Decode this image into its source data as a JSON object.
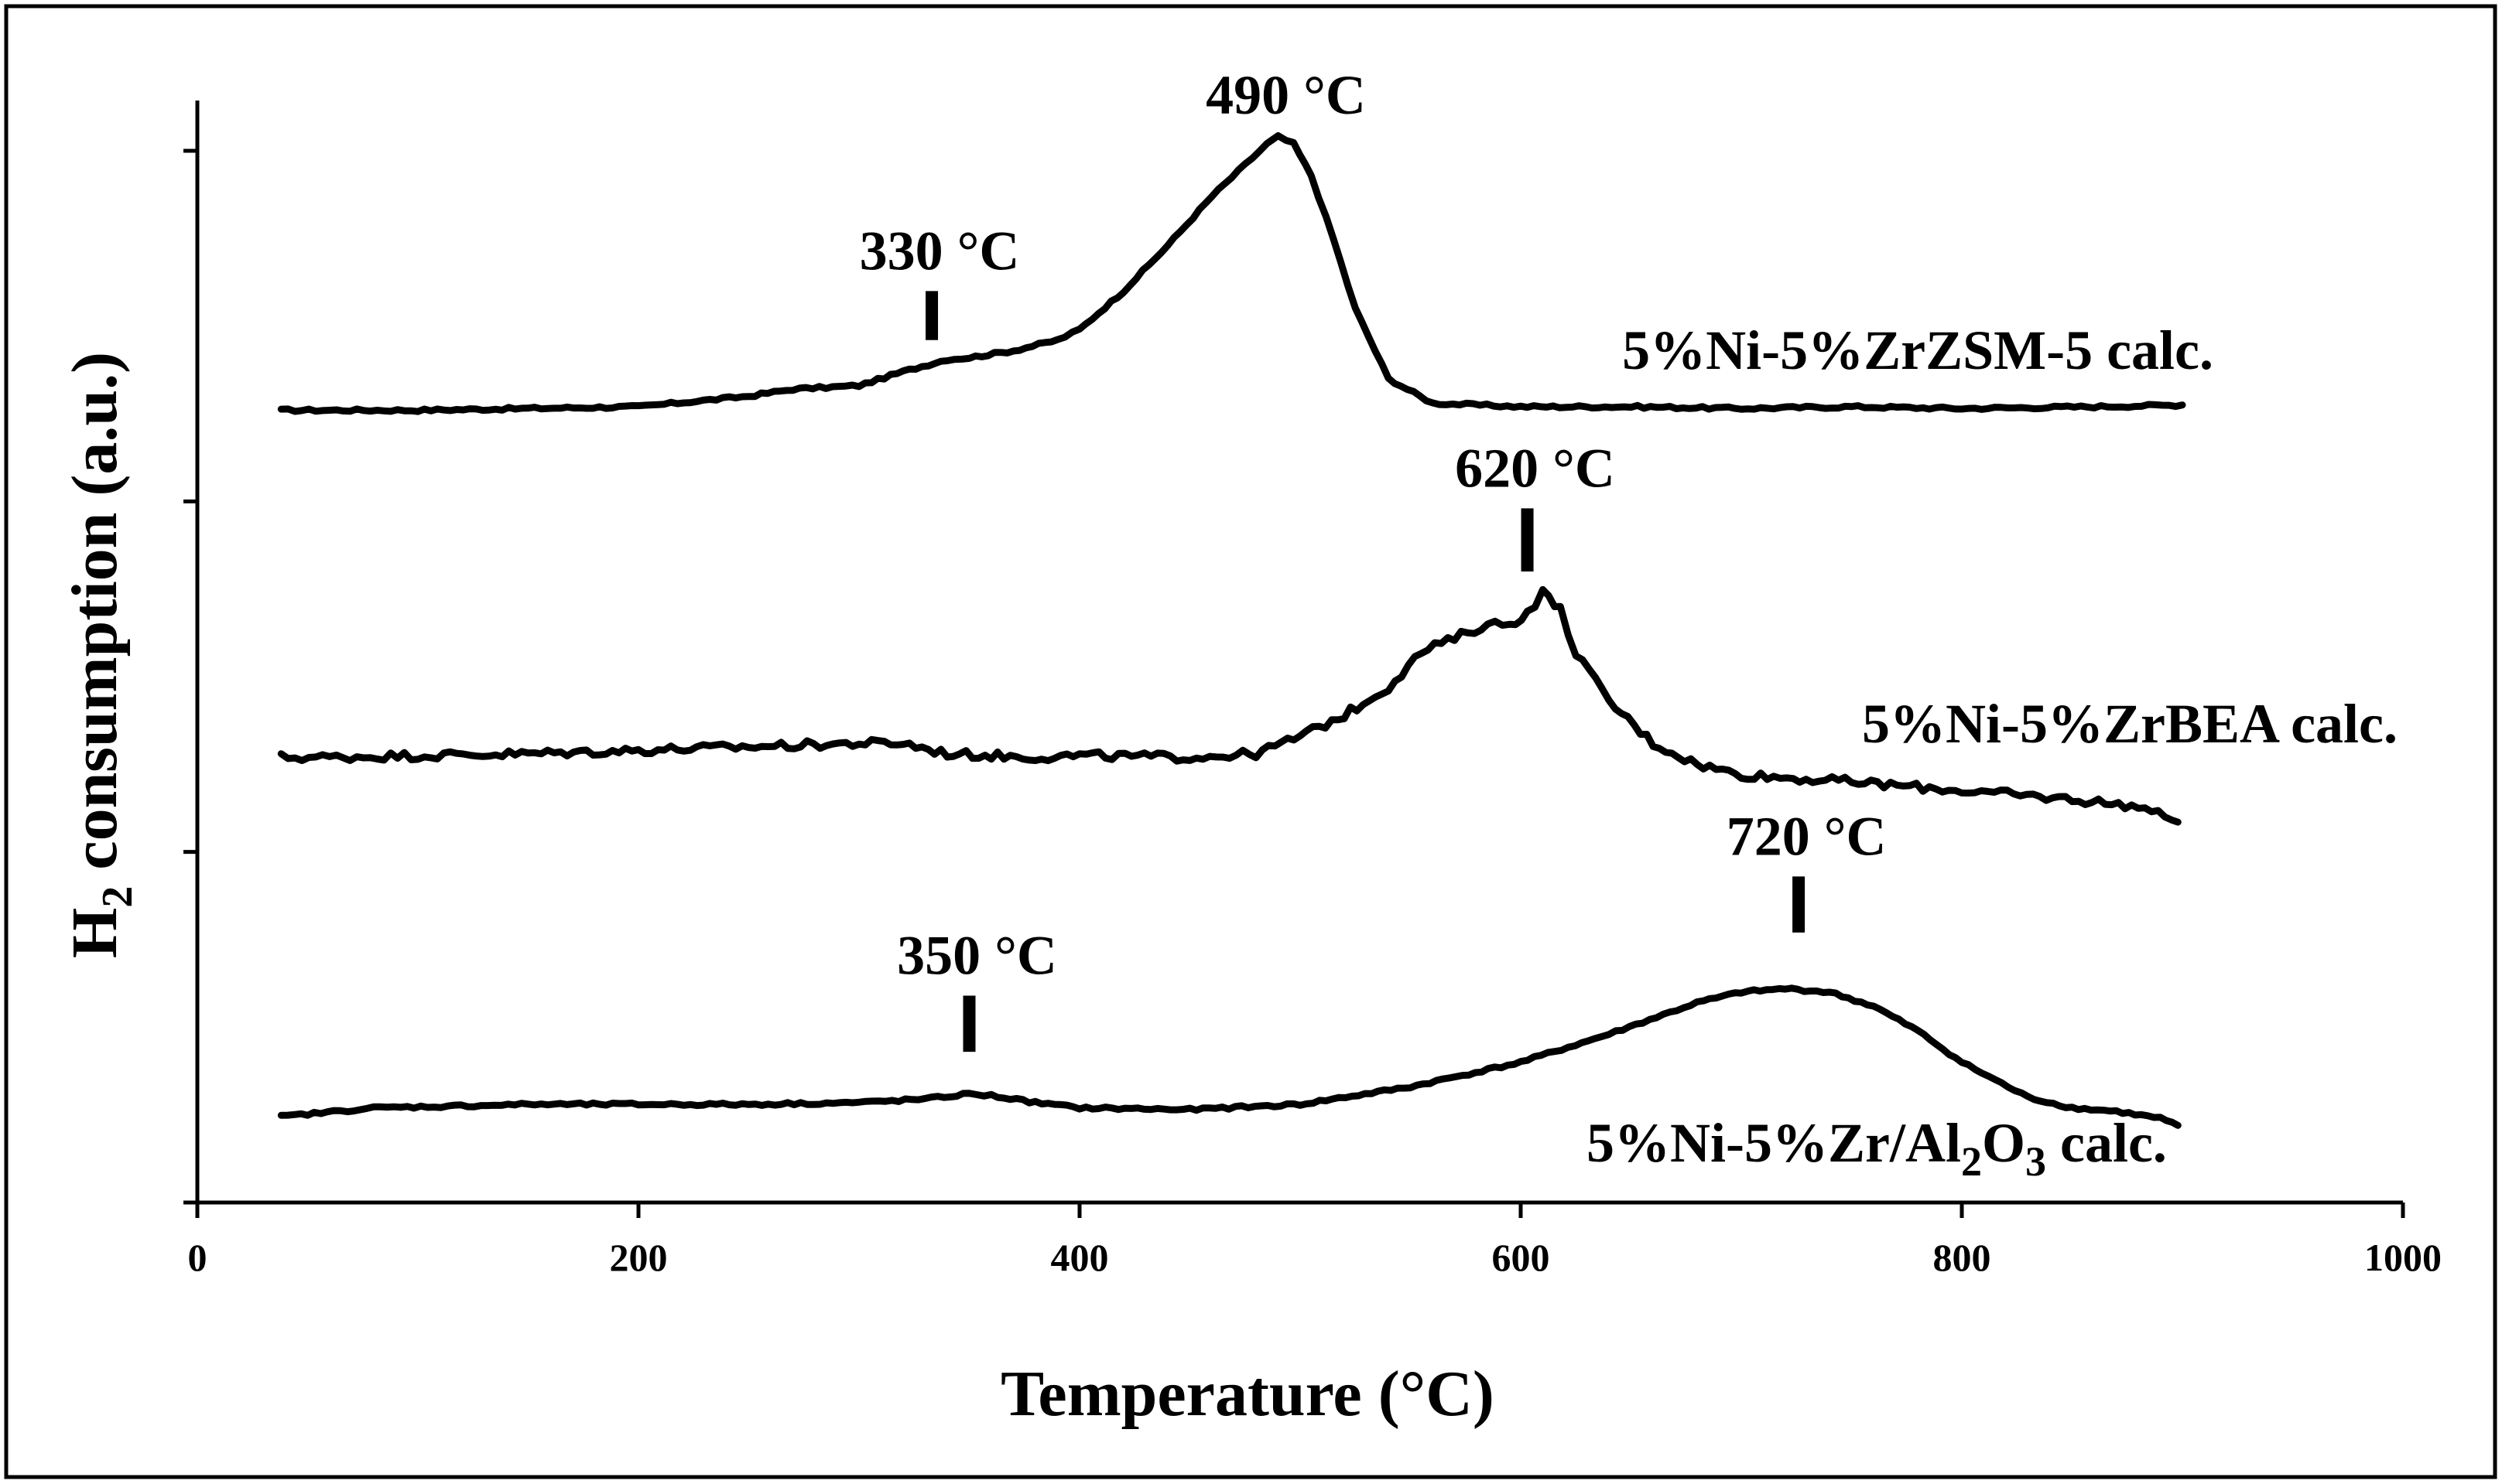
{
  "chart_data": {
    "type": "line",
    "title": "",
    "xlabel": "Temperature  (°C)",
    "ylabel": {
      "main": "H",
      "sub": "2",
      "rest": " consumption  (a.u.)"
    },
    "xlim": [
      0,
      1000
    ],
    "ylim": [
      0,
      3
    ],
    "x_ticks": [
      0,
      200,
      400,
      600,
      800,
      1000
    ],
    "x_tick_labels": [
      "0",
      "200",
      "400",
      "600",
      "800",
      "1000"
    ],
    "y_ticks": [
      0,
      1,
      2,
      3
    ],
    "y_tick_labels": [
      "",
      "",
      "",
      ""
    ],
    "grid": false,
    "legend": "none",
    "line_color": "#000000",
    "series": [
      {
        "name": {
          "pre": "5%Ni-5%ZrZSM-5  calc.",
          "sub1": "",
          "mid": "",
          "sub2": "",
          "post": ""
        },
        "x": [
          38,
          60,
          100,
          150,
          200,
          250,
          270,
          300,
          320,
          340,
          350,
          370,
          390,
          400,
          420,
          440,
          460,
          475,
          485,
          490,
          497,
          505,
          515,
          525,
          540,
          560,
          600,
          650,
          700,
          750,
          800,
          860,
          900
        ],
        "y": [
          2.26,
          2.26,
          2.26,
          2.265,
          2.27,
          2.3,
          2.32,
          2.33,
          2.37,
          2.405,
          2.41,
          2.43,
          2.46,
          2.49,
          2.6,
          2.73,
          2.87,
          2.96,
          3.02,
          3.04,
          3.02,
          2.93,
          2.75,
          2.55,
          2.35,
          2.28,
          2.27,
          2.27,
          2.265,
          2.27,
          2.265,
          2.27,
          2.275
        ]
      },
      {
        "name": {
          "pre": "5%Ni-5%ZrBEA  calc.",
          "sub1": "",
          "mid": "",
          "sub2": "",
          "post": ""
        },
        "x": [
          38,
          60,
          100,
          150,
          200,
          250,
          300,
          320,
          340,
          360,
          380,
          400,
          450,
          480,
          500,
          520,
          540,
          555,
          570,
          585,
          595,
          603,
          610,
          618,
          625,
          640,
          660,
          680,
          700,
          750,
          800,
          850,
          880,
          898
        ],
        "y": [
          1.27,
          1.27,
          1.275,
          1.28,
          1.29,
          1.3,
          1.31,
          1.31,
          1.28,
          1.275,
          1.27,
          1.275,
          1.27,
          1.28,
          1.33,
          1.39,
          1.47,
          1.57,
          1.61,
          1.65,
          1.65,
          1.68,
          1.74,
          1.69,
          1.57,
          1.43,
          1.31,
          1.25,
          1.22,
          1.2,
          1.175,
          1.15,
          1.13,
          1.085
        ]
      },
      {
        "name": {
          "pre": "5%Ni-5%Zr/Al",
          "sub1": "2",
          "mid": "O",
          "sub2": "3",
          "post": "  calc."
        },
        "x": [
          38,
          80,
          150,
          200,
          250,
          300,
          330,
          350,
          360,
          380,
          400,
          450,
          500,
          550,
          600,
          640,
          680,
          700,
          720,
          740,
          760,
          780,
          800,
          830,
          850,
          870,
          890,
          898
        ],
        "y": [
          0.245,
          0.27,
          0.28,
          0.28,
          0.28,
          0.285,
          0.295,
          0.31,
          0.305,
          0.285,
          0.27,
          0.265,
          0.28,
          0.33,
          0.4,
          0.48,
          0.57,
          0.6,
          0.61,
          0.6,
          0.56,
          0.49,
          0.4,
          0.3,
          0.27,
          0.26,
          0.24,
          0.22
        ]
      }
    ],
    "annotations": [
      {
        "text": "490 °C",
        "x": 490,
        "y": 3.04,
        "marker": false
      },
      {
        "text": "330 °C",
        "x": 333,
        "y": 2.405,
        "marker": true,
        "marker_y": [
          2.46,
          2.6
        ]
      },
      {
        "text": "620 °C",
        "x": 603,
        "y": 1.74,
        "marker": true,
        "marker_y": [
          1.8,
          1.98
        ]
      },
      {
        "text": "350 °C",
        "x": 350,
        "y": 0.31,
        "marker": true,
        "marker_y": [
          0.43,
          0.59
        ]
      },
      {
        "text": "720 °C",
        "x": 726,
        "y": 0.61,
        "marker": true,
        "marker_y": [
          0.77,
          0.93
        ]
      }
    ]
  }
}
